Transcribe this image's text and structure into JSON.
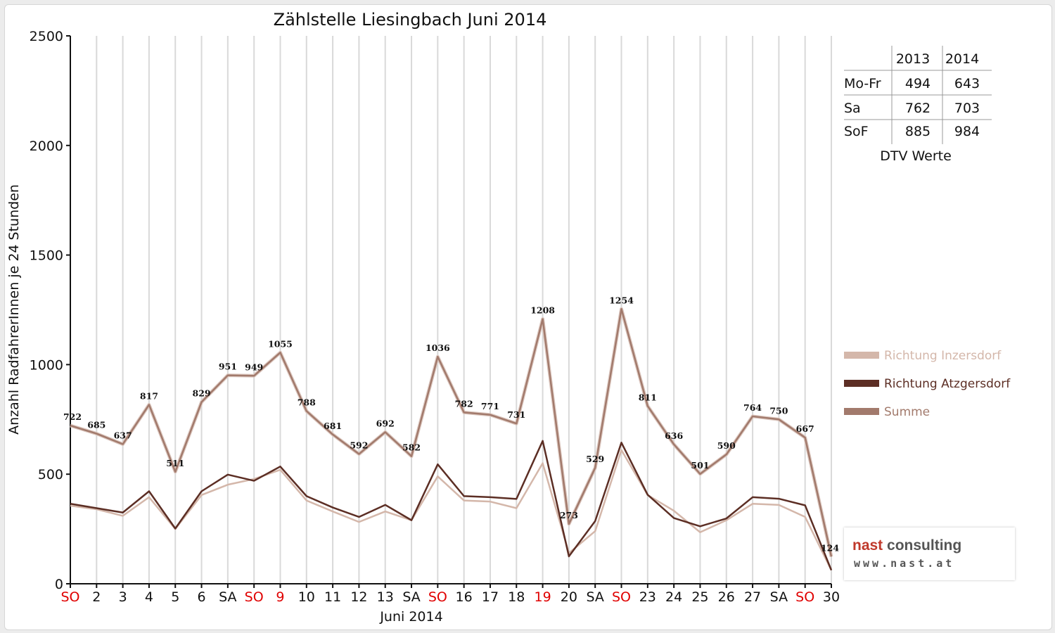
{
  "chart_data": {
    "type": "line",
    "title": "Zählstelle Liesingbach Juni 2014",
    "xlabel": "Juni 2014",
    "ylabel": "Anzahl RadfahrerInnen je 24 Stunden",
    "ylim": [
      0,
      2500
    ],
    "yticks": [
      "0",
      "500",
      "1000",
      "1500",
      "2000",
      "2500"
    ],
    "grid": true,
    "legend_position": "right",
    "categories": [
      "SO",
      "2",
      "3",
      "4",
      "5",
      "6",
      "SA",
      "SO",
      "9",
      "10",
      "11",
      "12",
      "13",
      "SA",
      "SO",
      "16",
      "17",
      "18",
      "19",
      "20",
      "SA",
      "SO",
      "23",
      "24",
      "25",
      "26",
      "27",
      "SA",
      "SO",
      "30"
    ],
    "category_highlight": [
      true,
      false,
      false,
      false,
      false,
      false,
      false,
      true,
      true,
      false,
      false,
      false,
      false,
      false,
      true,
      false,
      false,
      false,
      true,
      false,
      false,
      true,
      false,
      false,
      false,
      false,
      false,
      false,
      true,
      false
    ],
    "series": [
      {
        "name": "Richtung Inzersdorf",
        "color": "#d4b7aa",
        "values": [
          356,
          340,
          310,
          395,
          250,
          405,
          452,
          478,
          520,
          380,
          330,
          282,
          330,
          290,
          490,
          380,
          375,
          345,
          550,
          140,
          240,
          610,
          405,
          333,
          235,
          290,
          365,
          360,
          305,
          62
        ]
      },
      {
        "name": "Richtung Atzgersdorf",
        "color": "#5c2e24",
        "values": [
          365,
          345,
          325,
          422,
          252,
          422,
          498,
          470,
          535,
          400,
          348,
          305,
          360,
          290,
          545,
          400,
          395,
          387,
          652,
          125,
          286,
          644,
          406,
          300,
          262,
          298,
          395,
          388,
          358,
          62
        ]
      },
      {
        "name": "Summe",
        "color": "#a27a6c",
        "values": [
          722,
          685,
          637,
          817,
          511,
          829,
          951,
          949,
          1055,
          788,
          681,
          592,
          692,
          582,
          1036,
          782,
          771,
          731,
          1208,
          273,
          529,
          1254,
          811,
          636,
          501,
          590,
          764,
          750,
          667,
          124
        ]
      }
    ],
    "data_labels": [
      "722",
      "685",
      "637",
      "817",
      "511",
      "829",
      "951",
      "949",
      "1055",
      "788",
      "681",
      "592",
      "692",
      "582",
      "1036",
      "782",
      "771",
      "731",
      "1208",
      "273",
      "529",
      "1254",
      "811",
      "636",
      "501",
      "590",
      "764",
      "750",
      "667",
      "124"
    ]
  },
  "dtv_table": {
    "years": [
      "2013",
      "2014"
    ],
    "rows": [
      {
        "label": "Mo-Fr",
        "v2013": "494",
        "v2014": "643"
      },
      {
        "label": "Sa",
        "v2013": "762",
        "v2014": "703"
      },
      {
        "label": "SoF",
        "v2013": "885",
        "v2014": "984"
      }
    ],
    "caption": "DTV Werte"
  },
  "logo": {
    "name_part1": "nast",
    "name_part2": "consulting",
    "url": "www.nast.at"
  },
  "colors": {
    "highlight_tick": "#e00000",
    "normal_tick": "#111111",
    "grid": "#d9d9d9"
  }
}
